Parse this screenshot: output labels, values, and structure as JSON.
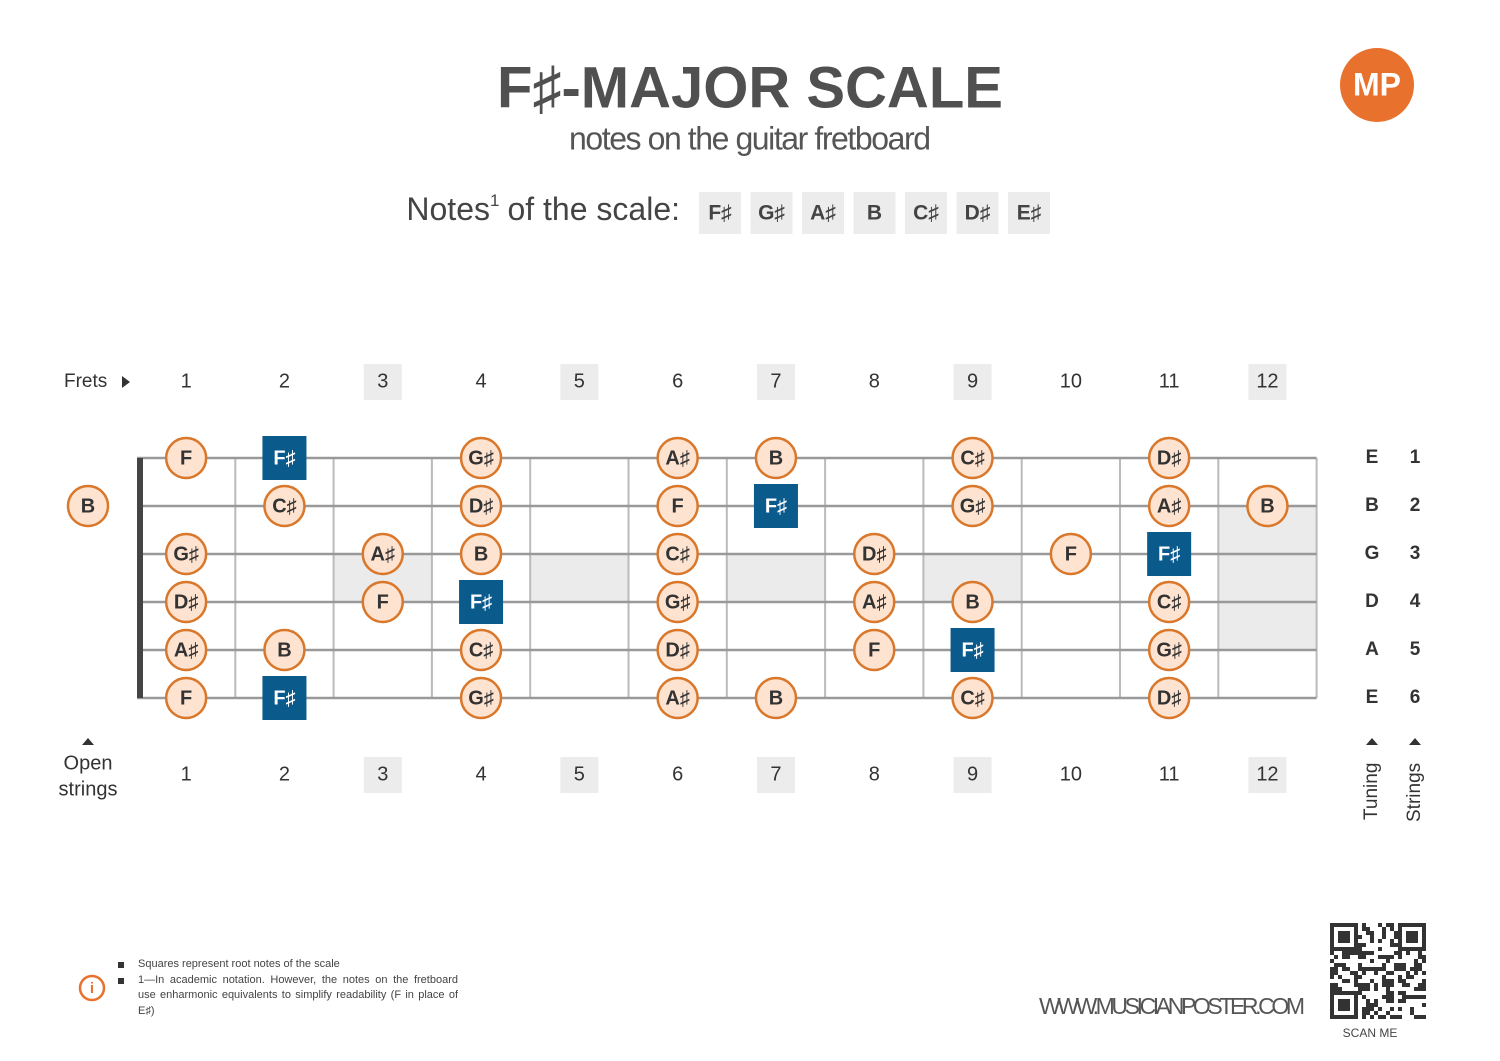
{
  "header": {
    "title": "F♯-MAJOR SCALE",
    "subtitle": "notes on the guitar fretboard",
    "logo": "MP"
  },
  "scale": {
    "label": "Notes",
    "label_sup": "1",
    "label_rest": "of the scale:",
    "notes": [
      "F♯",
      "G♯",
      "A♯",
      "B",
      "C♯",
      "D♯",
      "E♯"
    ]
  },
  "frets": {
    "label": "Frets",
    "numbers": [
      {
        "label": "1",
        "marked": false
      },
      {
        "label": "2",
        "marked": false
      },
      {
        "label": "3",
        "marked": true
      },
      {
        "label": "4",
        "marked": false
      },
      {
        "label": "5",
        "marked": true
      },
      {
        "label": "6",
        "marked": false
      },
      {
        "label": "7",
        "marked": true
      },
      {
        "label": "8",
        "marked": false
      },
      {
        "label": "9",
        "marked": true
      },
      {
        "label": "10",
        "marked": false
      },
      {
        "label": "11",
        "marked": false
      },
      {
        "label": "12",
        "marked": true
      }
    ]
  },
  "open_strings_label": [
    "Open",
    "strings"
  ],
  "tuning_label": "Tuning",
  "strings_label": "Strings",
  "strings": [
    {
      "tuning": "E",
      "number": "1",
      "open": null,
      "notes": [
        {
          "note": "F",
          "root": false
        },
        {
          "note": "F♯",
          "root": true
        },
        null,
        {
          "note": "G♯",
          "root": false
        },
        null,
        {
          "note": "A♯",
          "root": false
        },
        {
          "note": "B",
          "root": false
        },
        null,
        {
          "note": "C♯",
          "root": false
        },
        null,
        {
          "note": "D♯",
          "root": false
        },
        null
      ]
    },
    {
      "tuning": "B",
      "number": "2",
      "open": "B",
      "notes": [
        null,
        {
          "note": "C♯",
          "root": false
        },
        null,
        {
          "note": "D♯",
          "root": false
        },
        null,
        {
          "note": "F",
          "root": false
        },
        {
          "note": "F♯",
          "root": true
        },
        null,
        {
          "note": "G♯",
          "root": false
        },
        null,
        {
          "note": "A♯",
          "root": false
        },
        {
          "note": "B",
          "root": false
        }
      ]
    },
    {
      "tuning": "G",
      "number": "3",
      "open": null,
      "notes": [
        {
          "note": "G♯",
          "root": false
        },
        null,
        {
          "note": "A♯",
          "root": false
        },
        {
          "note": "B",
          "root": false
        },
        null,
        {
          "note": "C♯",
          "root": false
        },
        null,
        {
          "note": "D♯",
          "root": false
        },
        null,
        {
          "note": "F",
          "root": false
        },
        {
          "note": "F♯",
          "root": true
        },
        null
      ]
    },
    {
      "tuning": "D",
      "number": "4",
      "open": null,
      "notes": [
        {
          "note": "D♯",
          "root": false
        },
        null,
        {
          "note": "F",
          "root": false
        },
        {
          "note": "F♯",
          "root": true
        },
        null,
        {
          "note": "G♯",
          "root": false
        },
        null,
        {
          "note": "A♯",
          "root": false
        },
        {
          "note": "B",
          "root": false
        },
        null,
        {
          "note": "C♯",
          "root": false
        },
        null
      ]
    },
    {
      "tuning": "A",
      "number": "5",
      "open": null,
      "notes": [
        {
          "note": "A♯",
          "root": false
        },
        {
          "note": "B",
          "root": false
        },
        null,
        {
          "note": "C♯",
          "root": false
        },
        null,
        {
          "note": "D♯",
          "root": false
        },
        null,
        {
          "note": "F",
          "root": false
        },
        {
          "note": "F♯",
          "root": true
        },
        null,
        {
          "note": "G♯",
          "root": false
        },
        null
      ]
    },
    {
      "tuning": "E",
      "number": "6",
      "open": null,
      "notes": [
        {
          "note": "F",
          "root": false
        },
        {
          "note": "F♯",
          "root": true
        },
        null,
        {
          "note": "G♯",
          "root": false
        },
        null,
        {
          "note": "A♯",
          "root": false
        },
        {
          "note": "B",
          "root": false
        },
        null,
        {
          "note": "C♯",
          "root": false
        },
        null,
        {
          "note": "D♯",
          "root": false
        },
        null
      ]
    }
  ],
  "footer": {
    "legend": [
      "Squares represent root notes of the scale",
      "1—In academic notation. However, the notes on the fretboard use enharmonic equivalents to simplify readability (F in place of E♯)"
    ],
    "website": "WWW.MUSICIANPOSTER.COM",
    "scan": "SCAN ME"
  }
}
